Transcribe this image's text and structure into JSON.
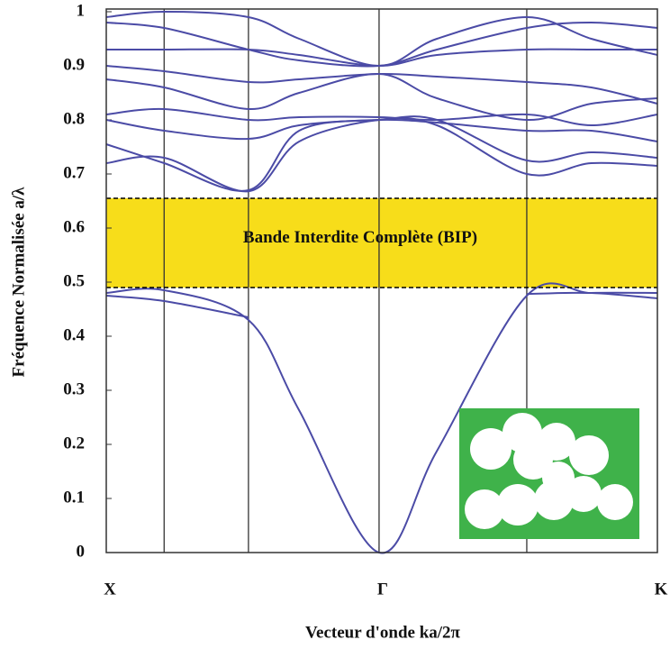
{
  "chart_data": {
    "type": "line",
    "ylabel": "Fréquence Normalisée a/λ",
    "xlabel": "Vecteur d'onde ka/2π",
    "x": [
      0,
      0.105,
      0.258,
      0.35,
      0.495,
      0.6,
      0.763,
      0.88,
      1
    ],
    "xlim": [
      0,
      1
    ],
    "xticks": [
      {
        "value": 0,
        "label": "X"
      },
      {
        "value": 0.495,
        "label": "Γ"
      },
      {
        "value": 1,
        "label": "K"
      }
    ],
    "vlines": [
      0.105,
      0.258,
      0.495,
      0.763
    ],
    "ylim": [
      0,
      1.005
    ],
    "yticks": [
      0,
      0.1,
      0.2,
      0.3,
      0.4,
      0.5,
      0.6,
      0.7,
      0.8,
      0.9,
      1
    ],
    "color": "#4b4ba6",
    "series": [
      {
        "values": [
          0.48,
          0.485,
          0.43,
          0.263,
          0,
          0.188,
          0.475,
          0.48,
          0.48
        ]
      },
      {
        "values": [
          0.475,
          0.465,
          0.435,
          null,
          null,
          null,
          0.478,
          0.48,
          0.47
        ]
      },
      {
        "values": [
          0.72,
          0.73,
          0.668,
          0.76,
          0.8,
          0.79,
          0.7,
          0.72,
          0.715
        ]
      },
      {
        "values": [
          0.755,
          0.72,
          0.67,
          0.78,
          0.8,
          0.8,
          0.725,
          0.74,
          0.73
        ]
      },
      {
        "values": [
          0.8,
          0.78,
          0.765,
          0.79,
          0.8,
          0.795,
          0.78,
          0.78,
          0.76
        ]
      },
      {
        "values": [
          0.81,
          0.82,
          0.8,
          0.805,
          0.805,
          0.8,
          0.81,
          0.79,
          0.81
        ]
      },
      {
        "values": [
          0.875,
          0.86,
          0.82,
          0.85,
          0.885,
          0.84,
          0.8,
          0.83,
          0.84
        ]
      },
      {
        "values": [
          0.9,
          0.89,
          0.87,
          0.875,
          0.885,
          0.88,
          0.87,
          0.86,
          0.83
        ]
      },
      {
        "values": [
          0.98,
          0.97,
          0.93,
          0.91,
          0.9,
          0.93,
          0.97,
          0.98,
          0.97
        ]
      },
      {
        "values": [
          0.99,
          1.0,
          0.99,
          0.95,
          0.9,
          0.95,
          0.99,
          0.95,
          0.92
        ]
      },
      {
        "values": [
          0.93,
          0.93,
          0.93,
          0.92,
          0.9,
          0.92,
          0.93,
          0.93,
          0.93
        ]
      }
    ],
    "band_gap": {
      "range": [
        0.49,
        0.655
      ],
      "label": "Bande Interdite Complète (BIP)",
      "color": "#f7dd1a"
    }
  }
}
